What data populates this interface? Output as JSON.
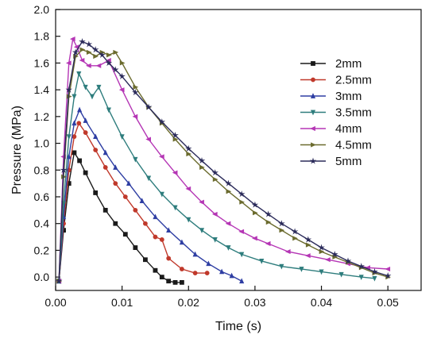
{
  "chart_data": {
    "type": "line",
    "xlabel": "Time (s)",
    "ylabel": "Pressure (MPa)",
    "xlim": [
      0.0,
      0.055
    ],
    "ylim": [
      -0.1,
      2.0
    ],
    "xticks": [
      0.0,
      0.01,
      0.02,
      0.03,
      0.04,
      0.05
    ],
    "xtick_labels": [
      "0.00",
      "0.01",
      "0.02",
      "0.03",
      "0.04",
      "0.05"
    ],
    "yticks": [
      0.0,
      0.2,
      0.4,
      0.6,
      0.8,
      1.0,
      1.2,
      1.4,
      1.6,
      1.8,
      2.0
    ],
    "ytick_labels": [
      "0.0",
      "0.2",
      "0.4",
      "0.6",
      "0.8",
      "1.0",
      "1.2",
      "1.4",
      "1.6",
      "1.8",
      "2.0"
    ],
    "legend_position": "top-right",
    "series": [
      {
        "name": "2mm",
        "color": "#1a1a1a",
        "marker": "square",
        "x": [
          0.0005,
          0.0012,
          0.002,
          0.0028,
          0.0036,
          0.0045,
          0.006,
          0.0075,
          0.009,
          0.0105,
          0.012,
          0.0135,
          0.015,
          0.016,
          0.017,
          0.018,
          0.019
        ],
        "y": [
          -0.03,
          0.35,
          0.7,
          0.93,
          0.87,
          0.78,
          0.63,
          0.5,
          0.4,
          0.32,
          0.22,
          0.13,
          0.05,
          0.0,
          -0.03,
          -0.04,
          -0.04
        ]
      },
      {
        "name": "2.5mm",
        "color": "#c0392b",
        "marker": "circle",
        "x": [
          0.0005,
          0.0012,
          0.002,
          0.0028,
          0.0035,
          0.0045,
          0.006,
          0.0075,
          0.009,
          0.0105,
          0.012,
          0.0135,
          0.015,
          0.016,
          0.017,
          0.019,
          0.021,
          0.0228
        ],
        "y": [
          -0.03,
          0.4,
          0.8,
          1.05,
          1.15,
          1.08,
          0.95,
          0.82,
          0.7,
          0.6,
          0.5,
          0.4,
          0.3,
          0.28,
          0.14,
          0.06,
          0.03,
          0.03
        ]
      },
      {
        "name": "3mm",
        "color": "#2e3ea3",
        "marker": "triangle-up",
        "x": [
          0.0005,
          0.0012,
          0.002,
          0.0028,
          0.0036,
          0.0045,
          0.006,
          0.0075,
          0.009,
          0.011,
          0.013,
          0.015,
          0.017,
          0.019,
          0.021,
          0.023,
          0.025,
          0.0265,
          0.028
        ],
        "y": [
          -0.03,
          0.45,
          0.9,
          1.15,
          1.25,
          1.17,
          1.05,
          0.93,
          0.82,
          0.7,
          0.57,
          0.45,
          0.35,
          0.26,
          0.17,
          0.1,
          0.04,
          0.01,
          -0.03
        ]
      },
      {
        "name": "3.5mm",
        "color": "#2e7d7d",
        "marker": "triangle-down",
        "x": [
          0.0005,
          0.0012,
          0.002,
          0.0028,
          0.0035,
          0.0045,
          0.0055,
          0.0065,
          0.008,
          0.01,
          0.012,
          0.014,
          0.016,
          0.018,
          0.02,
          0.022,
          0.024,
          0.026,
          0.028,
          0.031,
          0.034,
          0.037,
          0.04,
          0.043,
          0.046,
          0.048
        ],
        "y": [
          -0.03,
          0.55,
          1.05,
          1.35,
          1.52,
          1.42,
          1.35,
          1.42,
          1.25,
          1.05,
          0.88,
          0.74,
          0.62,
          0.52,
          0.43,
          0.35,
          0.28,
          0.22,
          0.17,
          0.12,
          0.08,
          0.06,
          0.04,
          0.02,
          0.0,
          -0.01
        ]
      },
      {
        "name": "4mm",
        "color": "#b536b5",
        "marker": "triangle-left",
        "x": [
          0.0005,
          0.0012,
          0.002,
          0.0026,
          0.0032,
          0.004,
          0.005,
          0.0065,
          0.008,
          0.01,
          0.012,
          0.014,
          0.016,
          0.018,
          0.02,
          0.022,
          0.024,
          0.026,
          0.028,
          0.03,
          0.032,
          0.035,
          0.038,
          0.041,
          0.044,
          0.047,
          0.05
        ],
        "y": [
          -0.03,
          0.9,
          1.6,
          1.78,
          1.72,
          1.62,
          1.58,
          1.58,
          1.62,
          1.4,
          1.2,
          1.03,
          0.9,
          0.78,
          0.66,
          0.56,
          0.47,
          0.4,
          0.34,
          0.29,
          0.25,
          0.19,
          0.16,
          0.13,
          0.1,
          0.07,
          0.06
        ]
      },
      {
        "name": "4.5mm",
        "color": "#6b6b2e",
        "marker": "triangle-right",
        "x": [
          0.0005,
          0.0012,
          0.002,
          0.003,
          0.004,
          0.005,
          0.006,
          0.007,
          0.008,
          0.009,
          0.01,
          0.012,
          0.014,
          0.016,
          0.018,
          0.02,
          0.022,
          0.024,
          0.026,
          0.028,
          0.03,
          0.032,
          0.034,
          0.036,
          0.038,
          0.04,
          0.042,
          0.044,
          0.046,
          0.048,
          0.05
        ],
        "y": [
          -0.03,
          0.75,
          1.35,
          1.65,
          1.7,
          1.68,
          1.65,
          1.68,
          1.66,
          1.68,
          1.6,
          1.42,
          1.27,
          1.15,
          1.03,
          0.92,
          0.82,
          0.73,
          0.64,
          0.56,
          0.48,
          0.41,
          0.35,
          0.29,
          0.24,
          0.19,
          0.15,
          0.11,
          0.07,
          0.03,
          0.0
        ]
      },
      {
        "name": "5mm",
        "color": "#2b2b5a",
        "marker": "star",
        "x": [
          0.0005,
          0.0012,
          0.002,
          0.003,
          0.004,
          0.005,
          0.006,
          0.007,
          0.008,
          0.009,
          0.01,
          0.012,
          0.014,
          0.016,
          0.018,
          0.02,
          0.022,
          0.024,
          0.026,
          0.028,
          0.03,
          0.032,
          0.034,
          0.036,
          0.038,
          0.04,
          0.042,
          0.044,
          0.046,
          0.048,
          0.05
        ],
        "y": [
          -0.03,
          0.8,
          1.4,
          1.68,
          1.76,
          1.74,
          1.7,
          1.66,
          1.6,
          1.55,
          1.5,
          1.38,
          1.27,
          1.16,
          1.06,
          0.96,
          0.87,
          0.78,
          0.7,
          0.62,
          0.54,
          0.47,
          0.4,
          0.34,
          0.28,
          0.22,
          0.17,
          0.12,
          0.08,
          0.04,
          0.01
        ]
      }
    ]
  }
}
